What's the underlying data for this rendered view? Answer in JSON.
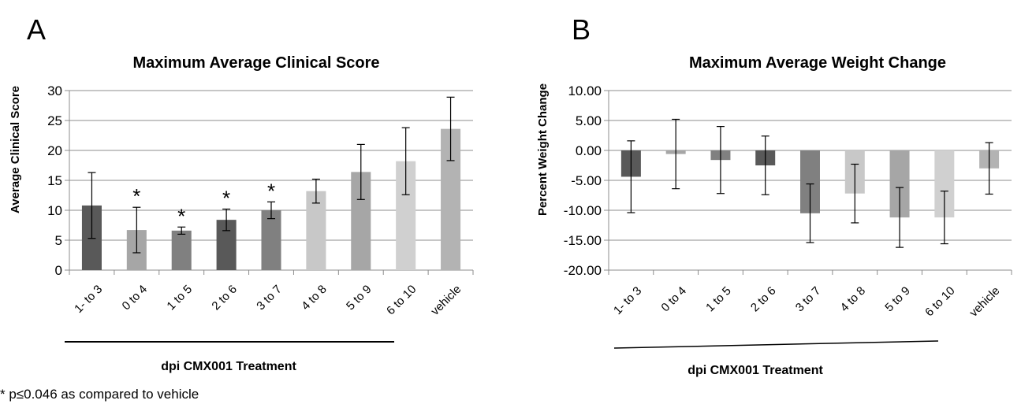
{
  "footnote": "* p≤0.046 as compared to vehicle",
  "chart_data": [
    {
      "panel_letter": "A",
      "type": "bar",
      "title": "Maximum Average Clinical Score",
      "xlabel": "dpi CMX001 Treatment",
      "ylabel": "Average Clinical Score",
      "categories": [
        "1- to 3",
        "0 to 4",
        "1 to 5",
        "2 to 6",
        "3 to 7",
        "4 to 8",
        "5 to 9",
        "6 to 10",
        "vehicle"
      ],
      "values": [
        10.8,
        6.7,
        6.6,
        8.4,
        10.0,
        13.2,
        16.4,
        18.2,
        23.6
      ],
      "error": [
        5.5,
        3.8,
        0.6,
        1.8,
        1.4,
        2.0,
        4.6,
        5.6,
        5.3
      ],
      "significance": [
        "",
        "*",
        "*",
        "*",
        "*",
        "",
        "",
        "",
        ""
      ],
      "bar_colors": [
        "#595959",
        "#a6a6a6",
        "#808080",
        "#595959",
        "#808080",
        "#c8c8c8",
        "#a6a6a6",
        "#d0d0d0",
        "#b3b3b3"
      ],
      "ylim": [
        0,
        30
      ],
      "yticks": [
        0,
        5,
        10,
        15,
        20,
        25,
        30
      ],
      "ytick_labels": [
        "0",
        "5",
        "10",
        "15",
        "20",
        "25",
        "30"
      ],
      "grid": true
    },
    {
      "panel_letter": "B",
      "type": "bar",
      "title": "Maximum Average Weight Change",
      "xlabel": "dpi CMX001 Treatment",
      "ylabel": "Percent Weight Change",
      "categories": [
        "1- to 3",
        "0 to 4",
        "1 to 5",
        "2 to 6",
        "3 to 7",
        "4 to 8",
        "5 to 9",
        "6 to 10",
        "vehicle"
      ],
      "values": [
        -4.4,
        -0.6,
        -1.6,
        -2.5,
        -10.5,
        -7.2,
        -11.2,
        -11.2,
        -3.0
      ],
      "error": [
        6.0,
        5.8,
        5.6,
        4.9,
        4.9,
        4.9,
        5.0,
        4.4,
        4.3
      ],
      "bar_colors": [
        "#595959",
        "#a6a6a6",
        "#808080",
        "#595959",
        "#808080",
        "#c8c8c8",
        "#a6a6a6",
        "#d0d0d0",
        "#b3b3b3"
      ],
      "ylim": [
        -20,
        10
      ],
      "yticks": [
        -20,
        -15,
        -10,
        -5,
        0,
        5,
        10
      ],
      "ytick_labels": [
        "-20.00",
        "-15.00",
        "-10.00",
        "-5.00",
        "0.00",
        "5.00",
        "10.00"
      ],
      "grid": true
    }
  ]
}
